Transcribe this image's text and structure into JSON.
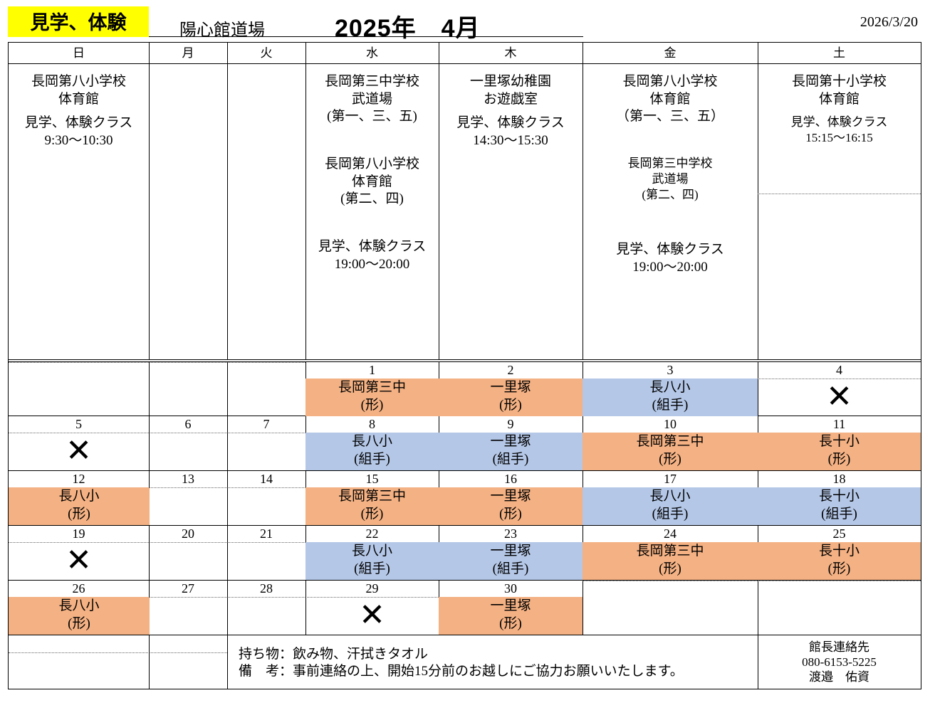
{
  "header": {
    "badge": "見学、体験",
    "dojo": "陽心館道場",
    "month": "2025年　4月",
    "print_date": "2026/3/20"
  },
  "weekdays": [
    "日",
    "月",
    "火",
    "水",
    "木",
    "金",
    "土"
  ],
  "colors": {
    "kata": "#F4B183",
    "kumite": "#B4C7E7",
    "badge": "#FFFF00"
  },
  "info": {
    "sun": [
      "長岡第八小学校\n体育館",
      "見学、体験クラス\n9:30～10:30"
    ],
    "wed": [
      "長岡第三中学校\n武道場\n(第一、三、五)",
      "長岡第八小学校\n体育館\n(第二、四)",
      "見学、体験クラス\n19:00～20:00"
    ],
    "thu": [
      "一里塚幼稚園\nお遊戯室",
      "見学、体験クラス\n14:30～15:30"
    ],
    "fri": [
      "長岡第八小学校\n体育館\n（第一、三、五）",
      "長岡第三中学校\n武道場\n(第二、四)",
      "見学、体験クラス\n19:00～20:00"
    ],
    "sat": [
      "長岡第十小学校\n体育館",
      "見学、体験クラス\n15:15～16:15"
    ]
  },
  "weeks": [
    [
      {},
      {},
      {},
      {
        "date": "1",
        "place": "長岡第三中",
        "type": "(形)",
        "kind": "kata"
      },
      {
        "date": "2",
        "place": "一里塚",
        "type": "(形)",
        "kind": "kata"
      },
      {
        "date": "3",
        "place": "長八小",
        "type": "(組手)",
        "kind": "kumite"
      },
      {
        "date": "4",
        "cross": "✕"
      }
    ],
    [
      {
        "date": "5",
        "cross": "✕"
      },
      {
        "date": "6"
      },
      {
        "date": "7"
      },
      {
        "date": "8",
        "place": "長八小",
        "type": "(組手)",
        "kind": "kumite"
      },
      {
        "date": "9",
        "place": "一里塚",
        "type": "(組手)",
        "kind": "kumite"
      },
      {
        "date": "10",
        "place": "長岡第三中",
        "type": "(形)",
        "kind": "kata"
      },
      {
        "date": "11",
        "place": "長十小",
        "type": "(形)",
        "kind": "kata"
      }
    ],
    [
      {
        "date": "12",
        "place": "長八小",
        "type": "(形)",
        "kind": "kata"
      },
      {
        "date": "13"
      },
      {
        "date": "14"
      },
      {
        "date": "15",
        "place": "長岡第三中",
        "type": "(形)",
        "kind": "kata"
      },
      {
        "date": "16",
        "place": "一里塚",
        "type": "(形)",
        "kind": "kata"
      },
      {
        "date": "17",
        "place": "長八小",
        "type": "(組手)",
        "kind": "kumite"
      },
      {
        "date": "18",
        "place": "長十小",
        "type": "(組手)",
        "kind": "kumite"
      }
    ],
    [
      {
        "date": "19",
        "cross": "✕"
      },
      {
        "date": "20"
      },
      {
        "date": "21"
      },
      {
        "date": "22",
        "place": "長八小",
        "type": "(組手)",
        "kind": "kumite"
      },
      {
        "date": "23",
        "place": "一里塚",
        "type": "(組手)",
        "kind": "kumite"
      },
      {
        "date": "24",
        "place": "長岡第三中",
        "type": "(形)",
        "kind": "kata"
      },
      {
        "date": "25",
        "place": "長十小",
        "type": "(形)",
        "kind": "kata"
      }
    ],
    [
      {
        "date": "26",
        "place": "長八小",
        "type": "(形)",
        "kind": "kata"
      },
      {
        "date": "27"
      },
      {
        "date": "28"
      },
      {
        "date": "29",
        "cross": "✕"
      },
      {
        "date": "30",
        "place": "一里塚",
        "type": "(形)",
        "kind": "kata"
      },
      {},
      {}
    ]
  ],
  "footer": {
    "bring": "持ち物：飲み物、汗拭きタオル",
    "note": "備　考：事前連絡の上、開始15分前のお越しにご協力お願いいたします。",
    "contact_title": "館長連絡先",
    "phone": "080-6153-5225",
    "name": "渡邉　佑資"
  }
}
